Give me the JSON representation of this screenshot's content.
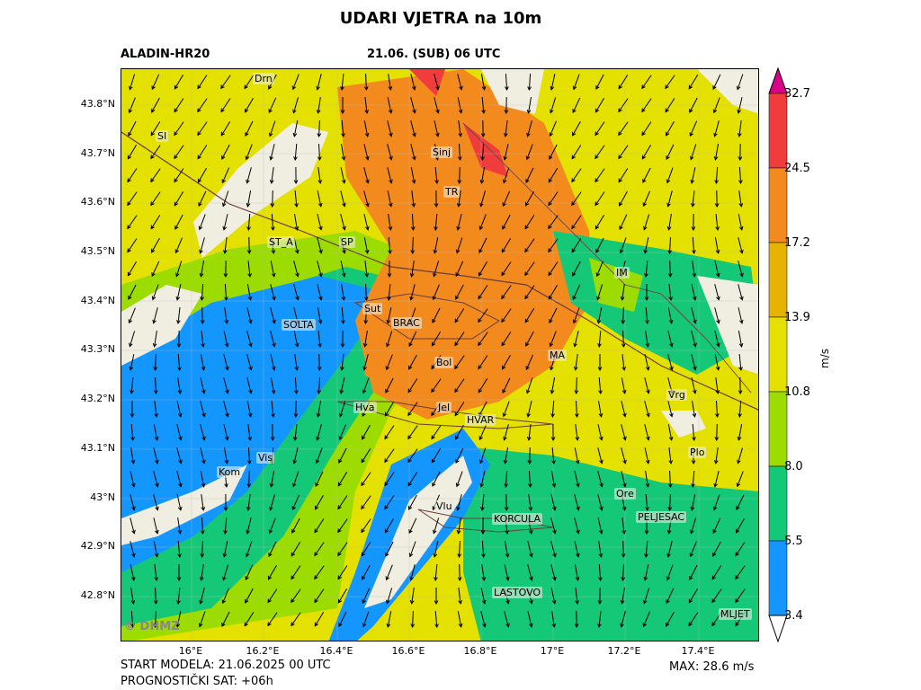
{
  "header": {
    "title": "UDARI VJETRA na 10m",
    "model": "ALADIN-HR20",
    "valid_time": "21.06. (SUB) 06 UTC"
  },
  "axes": {
    "lat_labels": [
      "43.8°N",
      "43.7°N",
      "43.6°N",
      "43.5°N",
      "43.4°N",
      "43.3°N",
      "43.2°N",
      "43.1°N",
      "43°N",
      "42.9°N",
      "42.8°N"
    ],
    "lon_labels": [
      "16°E",
      "16.2°E",
      "16.4°E",
      "16.6°E",
      "16.8°E",
      "17°E",
      "17.2°E",
      "17.4°E"
    ]
  },
  "places": [
    "Drn",
    "SI",
    "Sinj",
    "TR",
    "SP",
    "ST_A",
    "IM",
    "Sut",
    "BRAC",
    "SOLTA",
    "Bol",
    "MA",
    "Vrg",
    "Hva",
    "Jel",
    "HVAR",
    "Plo",
    "Vis",
    "Kom",
    "Ore",
    "Vlu",
    "KORCULA",
    "PELJESAC",
    "LASTOVO",
    "MLJET"
  ],
  "colorbar": {
    "labels": [
      "32.7",
      "24.5",
      "17.2",
      "13.9",
      "10.8",
      "8.0",
      "5.5",
      "3.4"
    ],
    "colors": [
      "#d8008a",
      "#f03c3c",
      "#f28a1e",
      "#e6b400",
      "#e4e000",
      "#9cdc00",
      "#14c878",
      "#1496ff"
    ],
    "unit": "m/s"
  },
  "footer": {
    "start": "START MODELA: 21.06.2025 00 UTC",
    "forecast": "PROGNOSTIČKI SAT: +06h",
    "max": "MAX: 28.6 m/s",
    "watermark": "© DHMZ"
  }
}
